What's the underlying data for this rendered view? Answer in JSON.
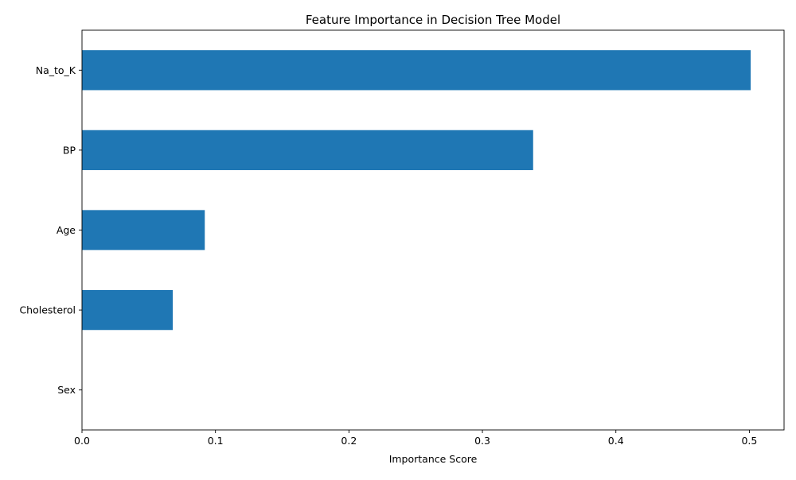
{
  "chart_data": {
    "type": "bar",
    "orientation": "horizontal",
    "title": "Feature Importance in Decision Tree Model",
    "xlabel": "Importance Score",
    "ylabel": "",
    "categories": [
      "Na_to_K",
      "BP",
      "Age",
      "Cholesterol",
      "Sex"
    ],
    "values": [
      0.501,
      0.338,
      0.092,
      0.068,
      0.0
    ],
    "xlim": [
      0,
      0.526
    ],
    "xticks": [
      0.0,
      0.1,
      0.2,
      0.3,
      0.4,
      0.5
    ],
    "xtick_labels": [
      "0.0",
      "0.1",
      "0.2",
      "0.3",
      "0.4",
      "0.5"
    ],
    "grid": false,
    "legend": "none",
    "bar_color": "#1f77b4"
  }
}
